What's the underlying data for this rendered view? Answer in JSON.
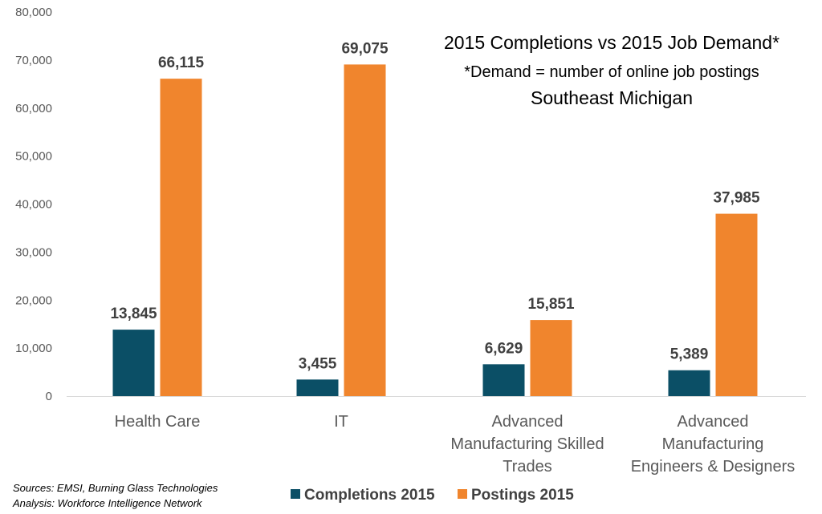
{
  "chart_data": {
    "type": "bar",
    "title": "2015 Completions vs 2015 Job Demand*",
    "subtitle": "*Demand = number of online job postings",
    "region": "Southeast Michigan",
    "categories": [
      [
        "Health Care"
      ],
      [
        "IT"
      ],
      [
        "Advanced",
        "Manufacturing Skilled",
        "Trades"
      ],
      [
        "Advanced",
        "Manufacturing",
        "Engineers & Designers"
      ]
    ],
    "series": [
      {
        "name": "Completions 2015",
        "color": "#0b4f66",
        "values": [
          13845,
          3455,
          6629,
          5389
        ],
        "labels": [
          "13,845",
          "3,455",
          "6,629",
          "5,389"
        ]
      },
      {
        "name": "Postings 2015",
        "color": "#f0852d",
        "values": [
          66115,
          69075,
          15851,
          37985
        ],
        "labels": [
          "66,115",
          "69,075",
          "15,851",
          "37,985"
        ]
      }
    ],
    "ylim": [
      0,
      80000
    ],
    "yticks": [
      0,
      10000,
      20000,
      30000,
      40000,
      50000,
      60000,
      70000,
      80000
    ],
    "ytick_labels": [
      "0",
      "10,000",
      "20,000",
      "30,000",
      "40,000",
      "50,000",
      "60,000",
      "70,000",
      "80,000"
    ],
    "grid": false,
    "legend_position": "bottom-center",
    "xlabel": "",
    "ylabel": ""
  },
  "sources": {
    "line1": "Sources: EMSI, Burning Glass Technologies",
    "line2": "Analysis: Workforce Intelligence Network"
  }
}
